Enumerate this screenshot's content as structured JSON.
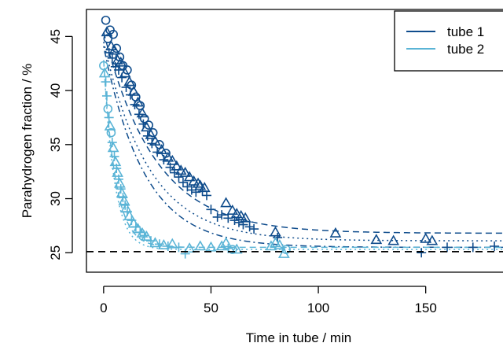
{
  "chart_data": {
    "type": "scatter",
    "xlabel": "Time in tube / min",
    "ylabel": "Parahydrogen fraction / %",
    "xlim": [
      -8,
      186
    ],
    "ylim": [
      23.2,
      47.5
    ],
    "xticks": [
      0,
      50,
      100,
      150
    ],
    "yticks": [
      25,
      30,
      35,
      40,
      45
    ],
    "reference_line": 25.1,
    "legend_placement": "top-right",
    "colors": {
      "tube1": "#0f4c8c",
      "tube2": "#5ab4d6",
      "reference": "#000000"
    },
    "legend": [
      {
        "label": "tube 1",
        "color": "#0f4c8c"
      },
      {
        "label": "tube 2",
        "color": "#5ab4d6"
      }
    ],
    "fits": [
      {
        "color": "#0f4c8c",
        "dash": "8,5",
        "asymptote": 26.8,
        "amplitude": 18.6,
        "tau": 24
      },
      {
        "color": "#0f4c8c",
        "dash": "2,4",
        "asymptote": 26.1,
        "amplitude": 18.4,
        "tau": 21
      },
      {
        "color": "#0f4c8c",
        "dash": "2,4,8,4",
        "asymptote": 25.5,
        "amplitude": 18.6,
        "tau": 19
      },
      {
        "color": "#5ab4d6",
        "dash": "8,5",
        "asymptote": 25.5,
        "amplitude": 17.3,
        "tau": 5.5
      },
      {
        "color": "#5ab4d6",
        "dash": "2,4",
        "asymptote": 25.3,
        "amplitude": 17.5,
        "tau": 5
      }
    ],
    "series": [
      {
        "name": "tube 1",
        "color": "#0f4c8c",
        "points": [
          {
            "x": 1,
            "y": 46.5,
            "m": "o"
          },
          {
            "x": 1.5,
            "y": 45.4,
            "m": "^"
          },
          {
            "x": 2,
            "y": 44.8,
            "m": "o"
          },
          {
            "x": 2.5,
            "y": 43.5,
            "m": "+"
          },
          {
            "x": 3,
            "y": 45.6,
            "m": "o"
          },
          {
            "x": 3.5,
            "y": 44.1,
            "m": "^"
          },
          {
            "x": 4,
            "y": 43.0,
            "m": "+"
          },
          {
            "x": 4.5,
            "y": 45.2,
            "m": "o"
          },
          {
            "x": 5,
            "y": 43.7,
            "m": "^"
          },
          {
            "x": 5.5,
            "y": 42.2,
            "m": "+"
          },
          {
            "x": 6,
            "y": 43.9,
            "m": "o"
          },
          {
            "x": 6.5,
            "y": 42.8,
            "m": "^"
          },
          {
            "x": 7,
            "y": 41.9,
            "m": "+"
          },
          {
            "x": 7.5,
            "y": 43.1,
            "m": "o"
          },
          {
            "x": 8,
            "y": 42.6,
            "m": "^"
          },
          {
            "x": 8.5,
            "y": 41.2,
            "m": "+"
          },
          {
            "x": 9,
            "y": 42.3,
            "m": "o"
          },
          {
            "x": 10,
            "y": 41.6,
            "m": "^"
          },
          {
            "x": 10.5,
            "y": 40.3,
            "m": "+"
          },
          {
            "x": 11,
            "y": 41.9,
            "m": "o"
          },
          {
            "x": 12,
            "y": 40.8,
            "m": "^"
          },
          {
            "x": 12.5,
            "y": 39.6,
            "m": "+"
          },
          {
            "x": 13,
            "y": 40.5,
            "m": "o"
          },
          {
            "x": 14,
            "y": 39.9,
            "m": "^"
          },
          {
            "x": 14.5,
            "y": 38.7,
            "m": "+"
          },
          {
            "x": 15,
            "y": 39.4,
            "m": "o"
          },
          {
            "x": 16,
            "y": 38.9,
            "m": "^"
          },
          {
            "x": 16.5,
            "y": 37.8,
            "m": "+"
          },
          {
            "x": 17,
            "y": 38.6,
            "m": "o"
          },
          {
            "x": 18,
            "y": 37.9,
            "m": "^"
          },
          {
            "x": 18.5,
            "y": 36.9,
            "m": "+"
          },
          {
            "x": 19,
            "y": 37.4,
            "m": "o"
          },
          {
            "x": 20,
            "y": 36.6,
            "m": "^"
          },
          {
            "x": 20.5,
            "y": 35.8,
            "m": "+"
          },
          {
            "x": 21,
            "y": 36.8,
            "m": "o"
          },
          {
            "x": 22,
            "y": 35.9,
            "m": "^"
          },
          {
            "x": 22.5,
            "y": 35.1,
            "m": "+"
          },
          {
            "x": 23,
            "y": 36.1,
            "m": "o"
          },
          {
            "x": 24,
            "y": 35.3,
            "m": "^"
          },
          {
            "x": 25,
            "y": 34.3,
            "m": "+"
          },
          {
            "x": 26,
            "y": 35.0,
            "m": "o"
          },
          {
            "x": 27,
            "y": 34.5,
            "m": "^"
          },
          {
            "x": 28,
            "y": 33.6,
            "m": "+"
          },
          {
            "x": 29,
            "y": 34.2,
            "m": "o"
          },
          {
            "x": 30,
            "y": 33.8,
            "m": "^"
          },
          {
            "x": 31,
            "y": 32.9,
            "m": "+"
          },
          {
            "x": 32,
            "y": 33.5,
            "m": "^"
          },
          {
            "x": 33,
            "y": 32.4,
            "m": "+"
          },
          {
            "x": 34,
            "y": 33.0,
            "m": "^"
          },
          {
            "x": 35,
            "y": 32.0,
            "m": "+"
          },
          {
            "x": 36,
            "y": 32.6,
            "m": "^"
          },
          {
            "x": 37,
            "y": 31.5,
            "m": "+"
          },
          {
            "x": 38,
            "y": 32.4,
            "m": "^"
          },
          {
            "x": 39,
            "y": 31.1,
            "m": "+"
          },
          {
            "x": 40,
            "y": 32.0,
            "m": "^"
          },
          {
            "x": 41,
            "y": 30.8,
            "m": "+"
          },
          {
            "x": 42,
            "y": 31.6,
            "m": "^"
          },
          {
            "x": 43,
            "y": 30.6,
            "m": "+"
          },
          {
            "x": 44,
            "y": 31.4,
            "m": "^"
          },
          {
            "x": 45,
            "y": 31.2,
            "m": "^"
          },
          {
            "x": 46,
            "y": 30.7,
            "m": "+"
          },
          {
            "x": 47,
            "y": 31.0,
            "m": "^"
          },
          {
            "x": 48,
            "y": 30.3,
            "m": "+"
          },
          {
            "x": 50,
            "y": 29.0,
            "m": "+"
          },
          {
            "x": 53,
            "y": 28.3,
            "m": "+"
          },
          {
            "x": 55,
            "y": 28.5,
            "m": "+"
          },
          {
            "x": 57,
            "y": 29.6,
            "m": "^"
          },
          {
            "x": 58,
            "y": 28.2,
            "m": "+"
          },
          {
            "x": 60,
            "y": 28.9,
            "m": "^"
          },
          {
            "x": 61,
            "y": 28.0,
            "m": "+"
          },
          {
            "x": 62,
            "y": 28.6,
            "m": "^"
          },
          {
            "x": 63,
            "y": 27.8,
            "m": "+"
          },
          {
            "x": 64,
            "y": 28.4,
            "m": "^"
          },
          {
            "x": 65,
            "y": 27.6,
            "m": "+"
          },
          {
            "x": 66,
            "y": 28.2,
            "m": "^"
          },
          {
            "x": 68,
            "y": 27.4,
            "m": "+"
          },
          {
            "x": 70,
            "y": 27.2,
            "m": "+"
          },
          {
            "x": 80,
            "y": 26.9,
            "m": "^"
          },
          {
            "x": 81,
            "y": 26.4,
            "m": "+"
          },
          {
            "x": 108,
            "y": 26.8,
            "m": "^"
          },
          {
            "x": 127,
            "y": 26.2,
            "m": "^"
          },
          {
            "x": 135,
            "y": 26.1,
            "m": "^"
          },
          {
            "x": 148,
            "y": 25.0,
            "m": "+"
          },
          {
            "x": 150,
            "y": 26.3,
            "m": "^"
          },
          {
            "x": 153,
            "y": 26.1,
            "m": "^"
          },
          {
            "x": 160,
            "y": 25.5,
            "m": "+"
          },
          {
            "x": 172,
            "y": 25.5,
            "m": "+"
          },
          {
            "x": 182,
            "y": 25.6,
            "m": "+"
          }
        ]
      },
      {
        "name": "tube 2",
        "color": "#5ab4d6",
        "points": [
          {
            "x": 0,
            "y": 42.3,
            "m": "o"
          },
          {
            "x": 0.5,
            "y": 41.6,
            "m": "^"
          },
          {
            "x": 1,
            "y": 40.8,
            "m": "+"
          },
          {
            "x": 1.5,
            "y": 39.5,
            "m": "+"
          },
          {
            "x": 2,
            "y": 38.3,
            "m": "o"
          },
          {
            "x": 2.5,
            "y": 37.5,
            "m": "+"
          },
          {
            "x": 3,
            "y": 36.7,
            "m": "^"
          },
          {
            "x": 3.5,
            "y": 36.1,
            "m": "o"
          },
          {
            "x": 4,
            "y": 35.2,
            "m": "+"
          },
          {
            "x": 4.5,
            "y": 34.7,
            "m": "^"
          },
          {
            "x": 5,
            "y": 33.9,
            "m": "+"
          },
          {
            "x": 5.5,
            "y": 33.4,
            "m": "^"
          },
          {
            "x": 6,
            "y": 32.8,
            "m": "+"
          },
          {
            "x": 6.5,
            "y": 32.4,
            "m": "^"
          },
          {
            "x": 7,
            "y": 31.8,
            "m": "+"
          },
          {
            "x": 7.5,
            "y": 31.4,
            "m": "^"
          },
          {
            "x": 8,
            "y": 30.9,
            "m": "+"
          },
          {
            "x": 8.5,
            "y": 30.5,
            "m": "^"
          },
          {
            "x": 9,
            "y": 30.1,
            "m": "+"
          },
          {
            "x": 9.5,
            "y": 29.8,
            "m": "^"
          },
          {
            "x": 10,
            "y": 29.4,
            "m": "+"
          },
          {
            "x": 10.5,
            "y": 29.1,
            "m": "^"
          },
          {
            "x": 11,
            "y": 28.8,
            "m": "+"
          },
          {
            "x": 12,
            "y": 28.4,
            "m": "^"
          },
          {
            "x": 13,
            "y": 28.0,
            "m": "+"
          },
          {
            "x": 14,
            "y": 27.7,
            "m": "^"
          },
          {
            "x": 15,
            "y": 27.4,
            "m": "+"
          },
          {
            "x": 16,
            "y": 27.2,
            "m": "^"
          },
          {
            "x": 17,
            "y": 26.9,
            "m": "+"
          },
          {
            "x": 18,
            "y": 26.8,
            "m": "^"
          },
          {
            "x": 19,
            "y": 26.6,
            "m": "+"
          },
          {
            "x": 20,
            "y": 26.5,
            "m": "^"
          },
          {
            "x": 22,
            "y": 26.1,
            "m": "+"
          },
          {
            "x": 24,
            "y": 25.9,
            "m": "^"
          },
          {
            "x": 26,
            "y": 25.8,
            "m": "+"
          },
          {
            "x": 28,
            "y": 25.7,
            "m": "^"
          },
          {
            "x": 30,
            "y": 25.6,
            "m": "+"
          },
          {
            "x": 32,
            "y": 25.8,
            "m": "^"
          },
          {
            "x": 35,
            "y": 25.5,
            "m": "+"
          },
          {
            "x": 38,
            "y": 24.9,
            "m": "+"
          },
          {
            "x": 40,
            "y": 25.4,
            "m": "^"
          },
          {
            "x": 45,
            "y": 25.6,
            "m": "^"
          },
          {
            "x": 50,
            "y": 25.5,
            "m": "^"
          },
          {
            "x": 55,
            "y": 25.6,
            "m": "^"
          },
          {
            "x": 57,
            "y": 25.9,
            "m": "^"
          },
          {
            "x": 58,
            "y": 25.4,
            "m": "+"
          },
          {
            "x": 60,
            "y": 25.3,
            "m": "o"
          },
          {
            "x": 62,
            "y": 25.3,
            "m": "^"
          },
          {
            "x": 78,
            "y": 25.6,
            "m": "^"
          },
          {
            "x": 80,
            "y": 25.9,
            "m": "^"
          },
          {
            "x": 82,
            "y": 25.7,
            "m": "^"
          },
          {
            "x": 84,
            "y": 24.9,
            "m": "^"
          },
          {
            "x": 85,
            "y": 25.3,
            "m": "o"
          }
        ]
      }
    ]
  }
}
